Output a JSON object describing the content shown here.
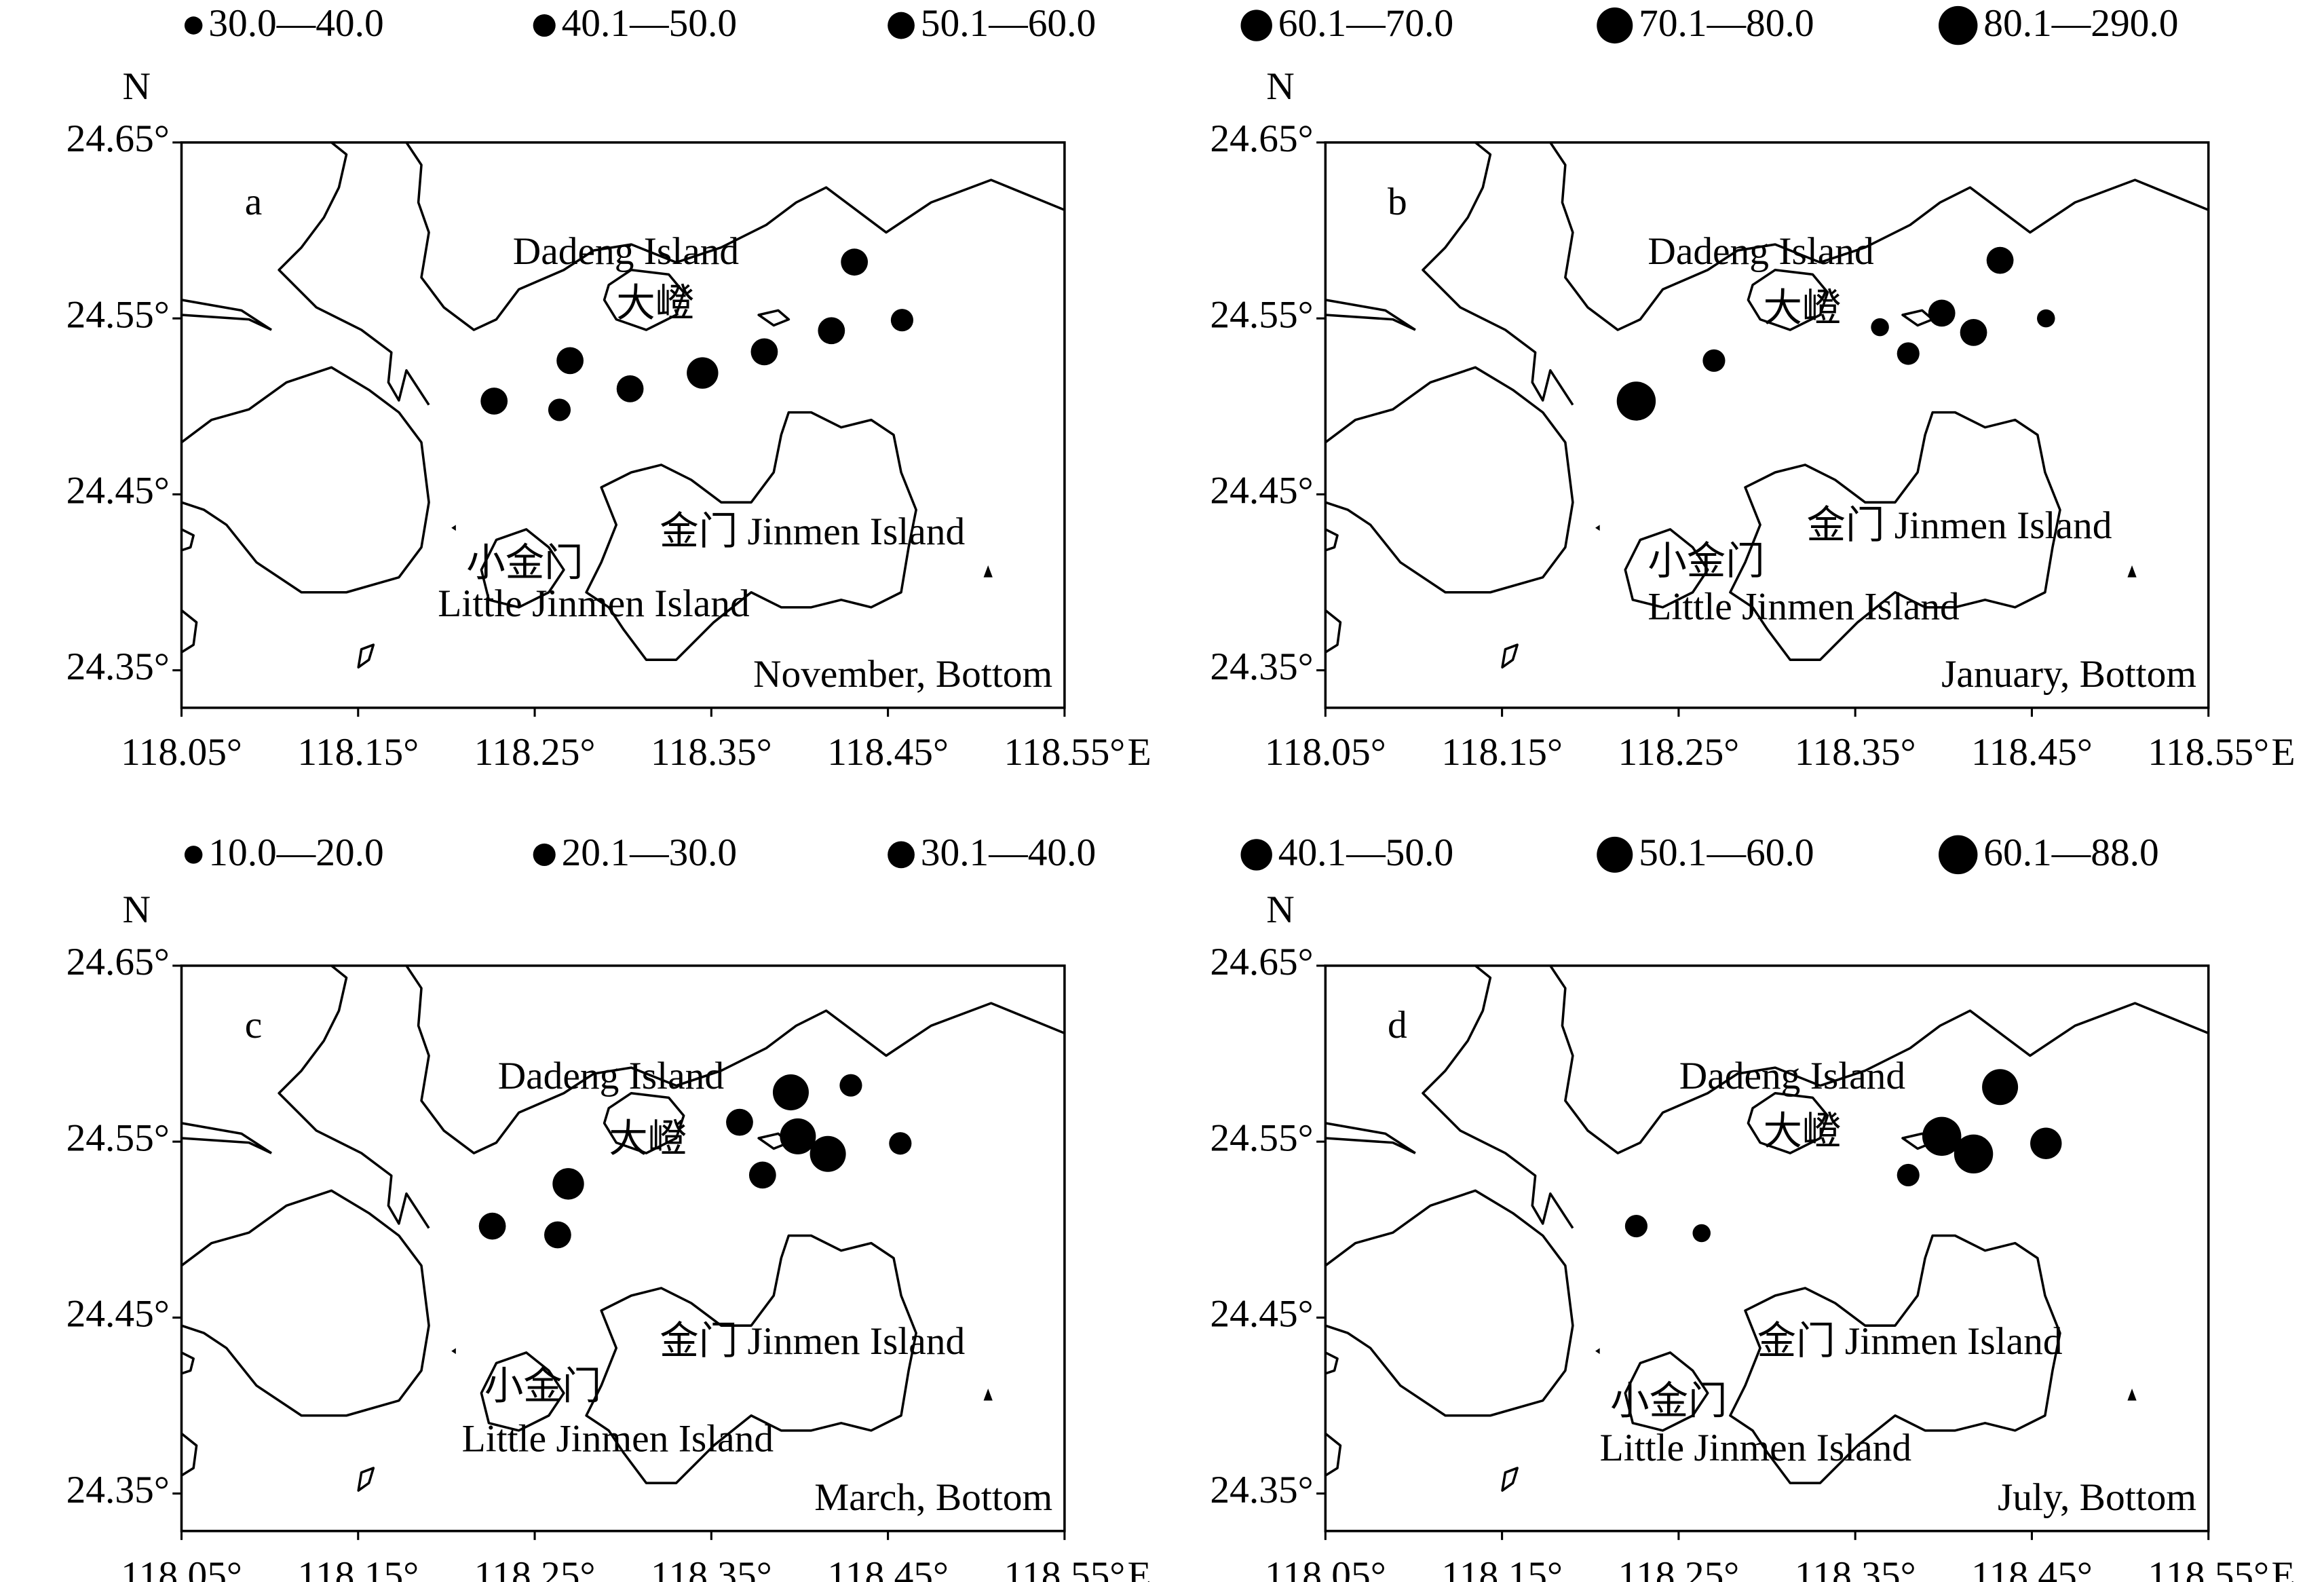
{
  "legends": [
    {
      "items": [
        "30.0—40.0",
        "40.1—50.0",
        "50.1—60.0",
        "60.1—70.0",
        "70.1—80.0",
        "80.1—290.0"
      ]
    },
    {
      "items": [
        "10.0—20.0",
        "20.1—30.0",
        "30.1—40.0",
        "40.1—50.0",
        "50.1—60.0",
        "60.1—88.0"
      ]
    }
  ],
  "xticks": [
    {
      "value": 118.05,
      "label": "118.05°"
    },
    {
      "value": 118.15,
      "label": "118.15°"
    },
    {
      "value": 118.25,
      "label": "118.25°"
    },
    {
      "value": 118.35,
      "label": "118.35°"
    },
    {
      "value": 118.45,
      "label": "118.45°"
    },
    {
      "value": 118.55,
      "label": "118.55°"
    }
  ],
  "yticks": [
    {
      "value": 24.35,
      "label": "24.35°"
    },
    {
      "value": 24.45,
      "label": "24.45°"
    },
    {
      "value": 24.55,
      "label": "24.55°"
    },
    {
      "value": 24.65,
      "label": "24.65°"
    }
  ],
  "xlabel": "E",
  "ylabel": "N",
  "places": {
    "dadeng": "Dadeng Island",
    "dadeng_cn": "大嶝",
    "jinmen": "金门 Jinmen Island",
    "little_cn": "小金门",
    "little": "Little Jinmen Island"
  },
  "panels": [
    {
      "letter": "a",
      "caption": "November, Bottom",
      "legend": 0,
      "stations": [
        {
          "lon": 118.227,
          "lat": 24.503,
          "bin": 2
        },
        {
          "lon": 118.27,
          "lat": 24.526,
          "bin": 2
        },
        {
          "lon": 118.264,
          "lat": 24.498,
          "bin": 1
        },
        {
          "lon": 118.304,
          "lat": 24.51,
          "bin": 2
        },
        {
          "lon": 118.345,
          "lat": 24.519,
          "bin": 3
        },
        {
          "lon": 118.38,
          "lat": 24.531,
          "bin": 2
        },
        {
          "lon": 118.418,
          "lat": 24.543,
          "bin": 2
        },
        {
          "lon": 118.431,
          "lat": 24.582,
          "bin": 2
        },
        {
          "lon": 118.458,
          "lat": 24.549,
          "bin": 1
        }
      ]
    },
    {
      "letter": "b",
      "caption": "January, Bottom",
      "legend": 0,
      "stations": [
        {
          "lon": 118.27,
          "lat": 24.526,
          "bin": 1
        },
        {
          "lon": 118.226,
          "lat": 24.503,
          "bin": 5
        },
        {
          "lon": 118.364,
          "lat": 24.545,
          "bin": 0
        },
        {
          "lon": 118.38,
          "lat": 24.53,
          "bin": 1
        },
        {
          "lon": 118.399,
          "lat": 24.553,
          "bin": 2
        },
        {
          "lon": 118.417,
          "lat": 24.542,
          "bin": 2
        },
        {
          "lon": 118.432,
          "lat": 24.583,
          "bin": 2
        },
        {
          "lon": 118.458,
          "lat": 24.55,
          "bin": 0
        }
      ]
    },
    {
      "letter": "c",
      "caption": "March, Bottom",
      "legend": 1,
      "stations": [
        {
          "lon": 118.226,
          "lat": 24.502,
          "bin": 2
        },
        {
          "lon": 118.263,
          "lat": 24.497,
          "bin": 2
        },
        {
          "lon": 118.269,
          "lat": 24.526,
          "bin": 3
        },
        {
          "lon": 118.366,
          "lat": 24.561,
          "bin": 2
        },
        {
          "lon": 118.379,
          "lat": 24.531,
          "bin": 2
        },
        {
          "lon": 118.395,
          "lat": 24.578,
          "bin": 4
        },
        {
          "lon": 118.399,
          "lat": 24.553,
          "bin": 4
        },
        {
          "lon": 118.416,
          "lat": 24.543,
          "bin": 4
        },
        {
          "lon": 118.429,
          "lat": 24.582,
          "bin": 1
        },
        {
          "lon": 118.457,
          "lat": 24.549,
          "bin": 1
        }
      ]
    },
    {
      "letter": "d",
      "caption": "July, Bottom",
      "legend": 1,
      "stations": [
        {
          "lon": 118.226,
          "lat": 24.502,
          "bin": 1
        },
        {
          "lon": 118.263,
          "lat": 24.498,
          "bin": 0
        },
        {
          "lon": 118.38,
          "lat": 24.531,
          "bin": 1
        },
        {
          "lon": 118.399,
          "lat": 24.553,
          "bin": 5
        },
        {
          "lon": 118.417,
          "lat": 24.543,
          "bin": 5
        },
        {
          "lon": 118.432,
          "lat": 24.581,
          "bin": 4
        },
        {
          "lon": 118.458,
          "lat": 24.549,
          "bin": 3
        }
      ]
    }
  ]
}
